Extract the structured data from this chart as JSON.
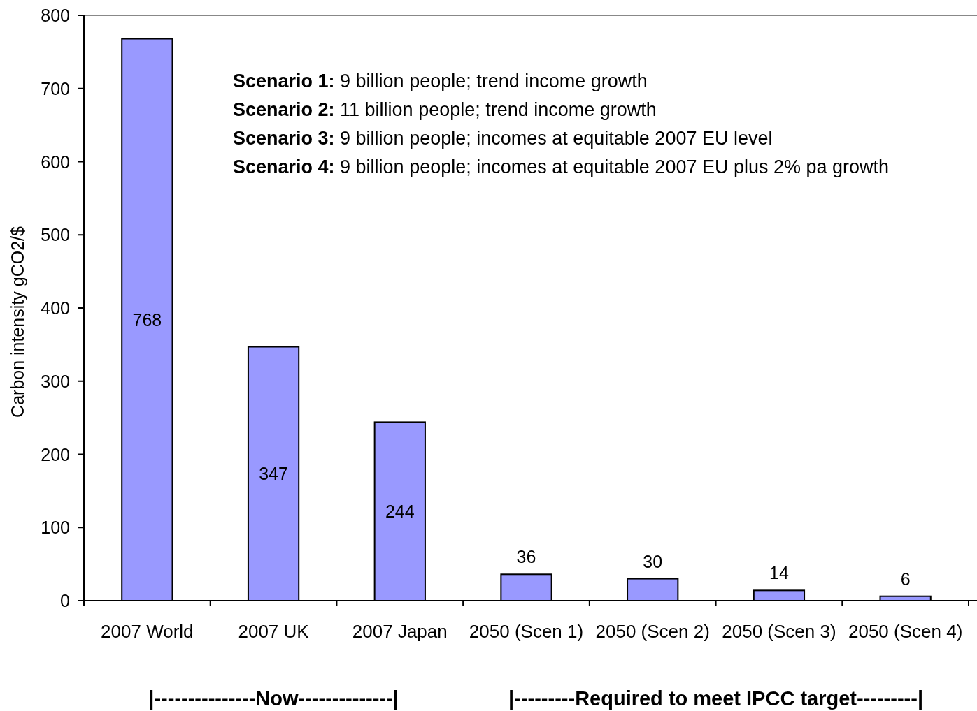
{
  "chart_data": {
    "type": "bar",
    "ylabel": "Carbon intensity gCO2/$",
    "categories": [
      "2007 World",
      "2007 UK",
      "2007 Japan",
      "2050 (Scen 1)",
      "2050 (Scen 2)",
      "2050 (Scen 3)",
      "2050 (Scen 4)"
    ],
    "values": [
      768,
      347,
      244,
      36,
      30,
      14,
      6
    ],
    "color": "#9999ff",
    "ylim": [
      0,
      800
    ],
    "yticks": [
      0,
      100,
      200,
      300,
      400,
      500,
      600,
      700,
      800
    ],
    "data_labels": true,
    "grid": false,
    "annotations": [
      "Scenario 1: 9 billion people; trend income growth",
      "Scenario 2: 11 billion people; trend income growth",
      "Scenario 3: 9 billion people; incomes at equitable 2007 EU level",
      "Scenario 4: 9 billion people; incomes at equitable 2007 EU plus 2% pa growth",
      "|---------------Now--------------|",
      "|---------Required to meet IPCC target---------|"
    ]
  }
}
